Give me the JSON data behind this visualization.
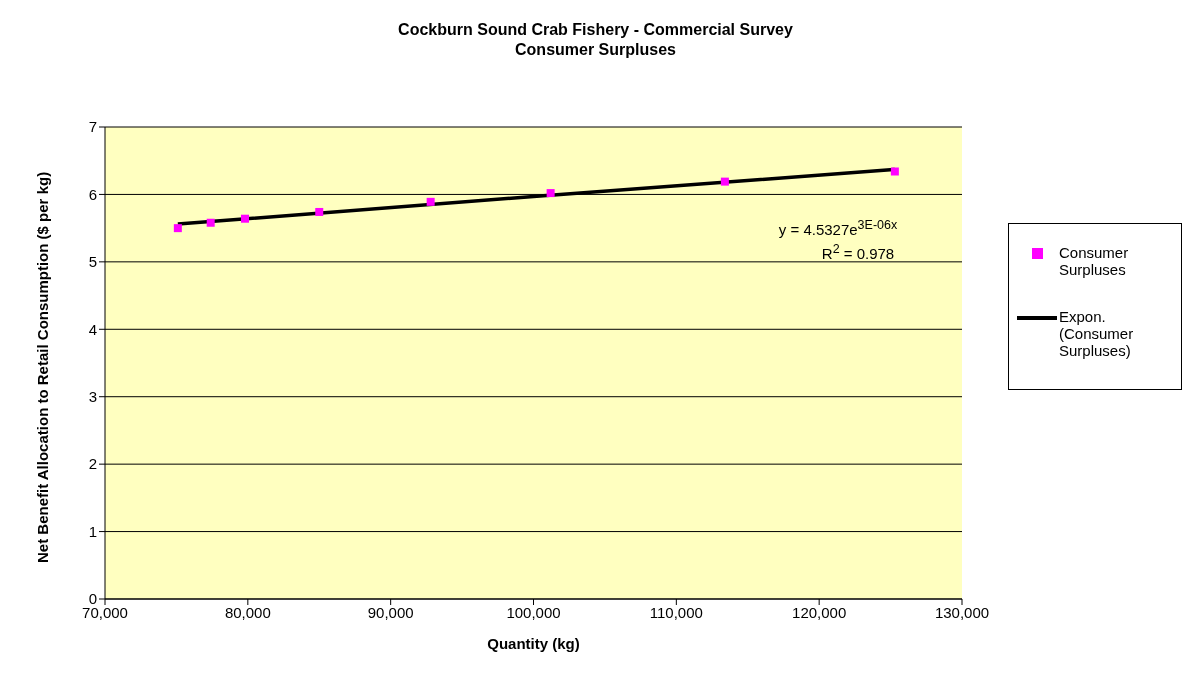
{
  "chart_data": {
    "type": "scatter",
    "title": "Cockburn Sound Crab Fishery - Commercial Survey",
    "subtitle": "Consumer Surpluses",
    "xlabel": "Quantity (kg)",
    "ylabel": "Net Benefit Allocation to Retail Consumption ($ per kg)",
    "series": [
      {
        "name": "Consumer Surpluses",
        "marker": "square",
        "color": "#ff00ff",
        "x": [
          75100,
          77400,
          79800,
          85000,
          92800,
          101200,
          113400,
          125300
        ],
        "values": [
          5.5,
          5.58,
          5.64,
          5.74,
          5.89,
          6.02,
          6.19,
          6.34
        ]
      },
      {
        "name": "Expon. (Consumer Surpluses)",
        "type": "line",
        "marker": "none",
        "color": "#000000",
        "x": [
          75100,
          100000,
          125300
        ],
        "values": [
          5.56,
          5.97,
          6.37
        ]
      }
    ],
    "xlim": [
      70000,
      130000
    ],
    "xticks": [
      {
        "value": 70000,
        "label": "70,000"
      },
      {
        "value": 80000,
        "label": "80,000"
      },
      {
        "value": 90000,
        "label": "90,000"
      },
      {
        "value": 100000,
        "label": "100,000"
      },
      {
        "value": 110000,
        "label": "110,000"
      },
      {
        "value": 120000,
        "label": "120,000"
      },
      {
        "value": 130000,
        "label": "130,000"
      }
    ],
    "ylim": [
      0,
      7
    ],
    "yticks": [
      0,
      1,
      2,
      3,
      4,
      5,
      6,
      7
    ],
    "annotations": [
      "y = 4.5327e$^{3E-06x}$",
      "R$^{2}$ = 0.978"
    ],
    "grid": "y",
    "legend": "right",
    "line_style": "solid"
  }
}
